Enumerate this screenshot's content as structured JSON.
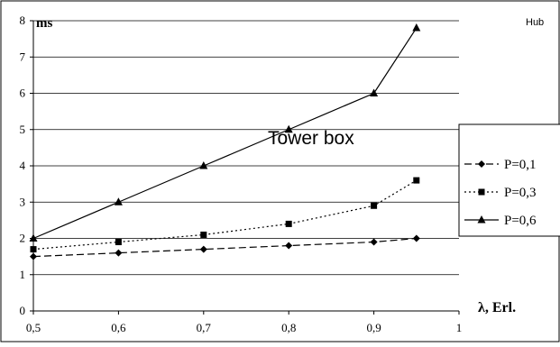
{
  "chart_data": {
    "type": "line",
    "ylabel": "ms",
    "xlabel": "λ, Erl.",
    "corner_label": "Hub",
    "annotation": "Tower box",
    "xlim": [
      0.5,
      1
    ],
    "ylim": [
      0,
      8
    ],
    "x_ticks": [
      0.5,
      0.6,
      0.7,
      0.8,
      0.9,
      1
    ],
    "x_tick_labels": [
      "0,5",
      "0,6",
      "0,7",
      "0,8",
      "0,9",
      "1"
    ],
    "y_ticks": [
      0,
      1,
      2,
      3,
      4,
      5,
      6,
      7,
      8
    ],
    "y_tick_labels": [
      "0",
      "1",
      "2",
      "3",
      "4",
      "5",
      "6",
      "7",
      "8"
    ],
    "grid": "horizontal",
    "legend_position": "right",
    "series": [
      {
        "name": "P=0,1",
        "marker": "diamond",
        "line": "dashed",
        "color": "#000000",
        "x": [
          0.5,
          0.6,
          0.7,
          0.8,
          0.9,
          0.95
        ],
        "y": [
          1.5,
          1.6,
          1.7,
          1.8,
          1.9,
          2.0
        ]
      },
      {
        "name": "P=0,3",
        "marker": "square",
        "line": "dotted",
        "color": "#000000",
        "x": [
          0.5,
          0.6,
          0.7,
          0.8,
          0.9,
          0.95
        ],
        "y": [
          1.7,
          1.9,
          2.1,
          2.4,
          2.9,
          3.6
        ]
      },
      {
        "name": "P=0,6",
        "marker": "triangle",
        "line": "solid",
        "color": "#000000",
        "x": [
          0.5,
          0.6,
          0.7,
          0.8,
          0.9,
          0.95
        ],
        "y": [
          2.0,
          3.0,
          4.0,
          5.0,
          6.0,
          7.8
        ]
      }
    ]
  }
}
